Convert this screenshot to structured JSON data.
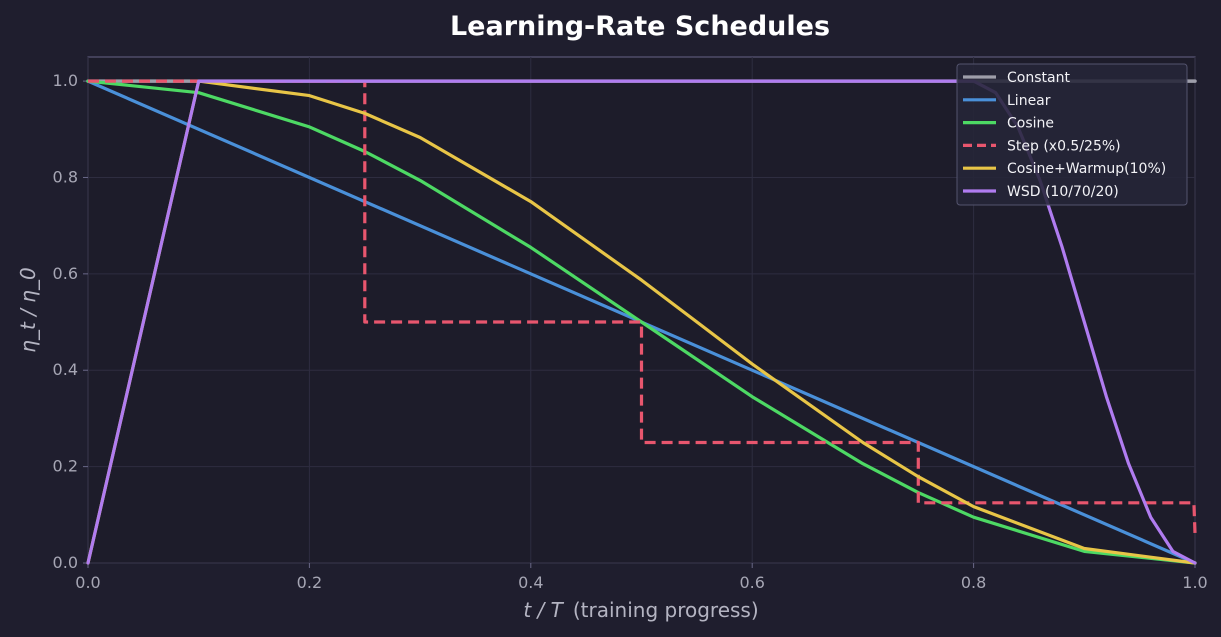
{
  "chart_data": {
    "type": "line",
    "title": "Learning-Rate Schedules",
    "xlabel_var": "t / T",
    "xlabel_text": "(training progress)",
    "ylabel": "η_t / η_0",
    "xlim": [
      0.0,
      1.0
    ],
    "ylim": [
      0.0,
      1.05
    ],
    "xticks": [
      "0.0",
      "0.2",
      "0.4",
      "0.6",
      "0.8",
      "1.0"
    ],
    "yticks": [
      "0.0",
      "0.2",
      "0.4",
      "0.6",
      "0.8",
      "1.0"
    ],
    "grid": true,
    "legend_position": "top-right",
    "series": [
      {
        "name": "Constant",
        "color": "#9e9eaa",
        "dashed": false,
        "x": [
          0.0,
          1.0
        ],
        "y": [
          1.0,
          1.0
        ]
      },
      {
        "name": "Linear",
        "color": "#4a90d9",
        "dashed": false,
        "x": [
          0.0,
          1.0
        ],
        "y": [
          1.0,
          0.0
        ]
      },
      {
        "name": "Cosine",
        "color": "#4dd964",
        "dashed": false,
        "x": [
          0.0,
          0.1,
          0.2,
          0.25,
          0.3,
          0.4,
          0.5,
          0.6,
          0.7,
          0.75,
          0.8,
          0.9,
          1.0
        ],
        "y": [
          1.0,
          0.976,
          0.905,
          0.854,
          0.794,
          0.655,
          0.5,
          0.345,
          0.206,
          0.146,
          0.095,
          0.024,
          0.0
        ]
      },
      {
        "name": "Step (x0.5/25%)",
        "color": "#e8566e",
        "dashed": true,
        "x": [
          0.0,
          0.25,
          0.25,
          0.5,
          0.5,
          0.75,
          0.75,
          0.999,
          1.0
        ],
        "y": [
          1.0,
          1.0,
          0.5,
          0.5,
          0.25,
          0.25,
          0.125,
          0.125,
          0.0625
        ]
      },
      {
        "name": "Cosine+Warmup(10%)",
        "color": "#e8c547",
        "dashed": false,
        "x": [
          0.0,
          0.1,
          0.2,
          0.25,
          0.3,
          0.4,
          0.5,
          0.55,
          0.6,
          0.7,
          0.75,
          0.8,
          0.9,
          1.0
        ],
        "y": [
          0.0,
          1.0,
          0.97,
          0.933,
          0.883,
          0.75,
          0.587,
          0.5,
          0.413,
          0.25,
          0.179,
          0.117,
          0.03,
          0.0
        ]
      },
      {
        "name": "WSD (10/70/20)",
        "color": "#b07cf0",
        "dashed": false,
        "x": [
          0.0,
          0.1,
          0.8,
          0.82,
          0.84,
          0.86,
          0.88,
          0.9,
          0.92,
          0.94,
          0.96,
          0.98,
          1.0
        ],
        "y": [
          0.0,
          1.0,
          1.0,
          0.976,
          0.905,
          0.794,
          0.655,
          0.5,
          0.345,
          0.206,
          0.095,
          0.024,
          0.0
        ]
      }
    ]
  }
}
